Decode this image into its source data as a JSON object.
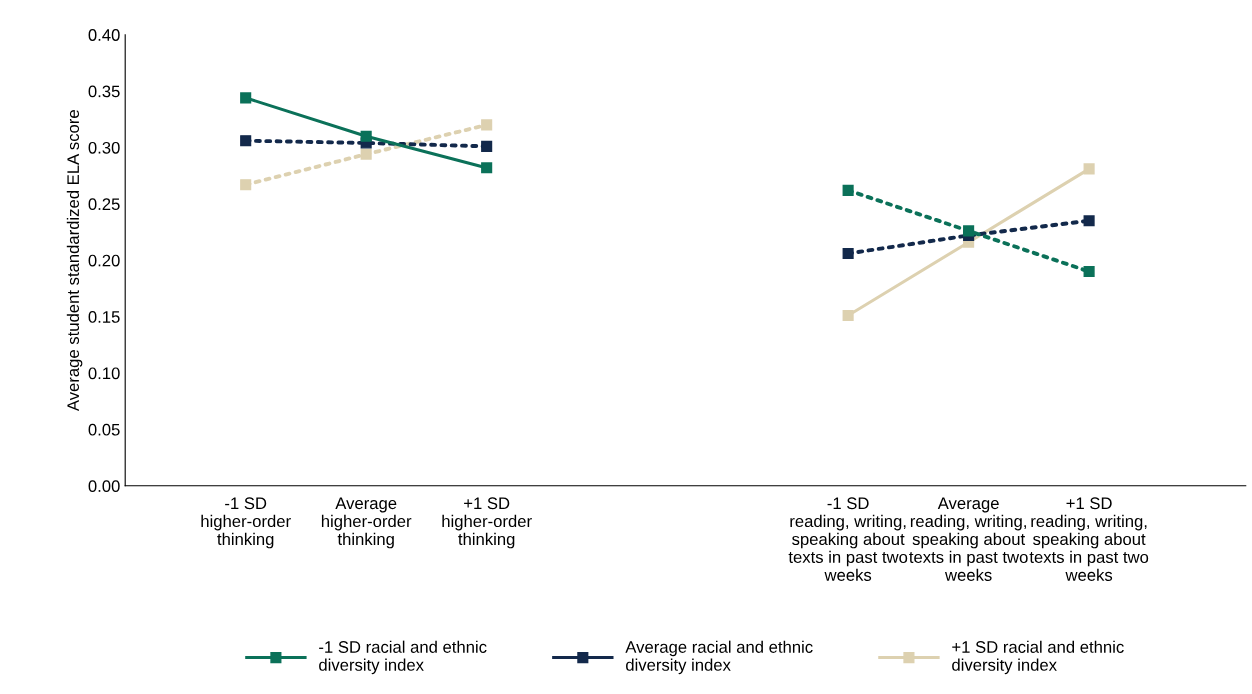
{
  "chart_data": {
    "type": "line",
    "ylabel": "Average student standardized ELA score",
    "categories": [
      "-1 SD\nhigher-order\nthinking",
      "Average\nhigher-order\nthinking",
      "+1 SD\nhigher-order\nthinking",
      null,
      null,
      "-1 SD\nreading, writing,\nspeaking about\ntexts in past two\nweeks",
      "Average\nreading, writing,\nspeaking about\ntexts in past two\nweeks",
      "+1 SD\nreading, writing,\nspeaking about\ntexts in past two\nweeks"
    ],
    "ylim": [
      0,
      0.4
    ],
    "yticks": [
      {
        "value": 0,
        "label": "0.00"
      },
      {
        "value": 0.05,
        "label": "0.05"
      },
      {
        "value": 0.1,
        "label": "0.10"
      },
      {
        "value": 0.15,
        "label": "0.15"
      },
      {
        "value": 0.2,
        "label": "0.20"
      },
      {
        "value": 0.25,
        "label": "0.25"
      },
      {
        "value": 0.3,
        "label": "0.30"
      },
      {
        "value": 0.35,
        "label": "0.35"
      },
      {
        "value": 0.4,
        "label": "0.40"
      }
    ],
    "marker": "square",
    "grid": false,
    "legend": "bottom",
    "series": [
      {
        "name": "-1 SD racial and ethnic\ndiversity index",
        "color": "#0b7159",
        "line_style": "solid",
        "values": [
          0.344,
          0.31,
          0.282,
          null,
          null,
          null,
          null,
          null
        ]
      },
      {
        "name": "Average racial and ethnic\ndiversity index",
        "color": "#13294b",
        "line_style": "dotted",
        "values": [
          0.306,
          0.304,
          0.301,
          null,
          null,
          null,
          null,
          null
        ]
      },
      {
        "name": "+1 SD racial and ethnic\ndiversity index",
        "color": "#ddd1b0",
        "line_style": "dotted",
        "values": [
          0.267,
          0.294,
          0.32,
          null,
          null,
          null,
          null,
          null
        ]
      },
      {
        "color": "#0b7159",
        "line_style": "dotted",
        "values": [
          null,
          null,
          null,
          null,
          null,
          0.262,
          0.226,
          0.19
        ]
      },
      {
        "color": "#13294b",
        "line_style": "dotted",
        "values": [
          null,
          null,
          null,
          null,
          null,
          0.206,
          0.222,
          0.235
        ]
      },
      {
        "color": "#ddd1b0",
        "line_style": "solid",
        "values": [
          null,
          null,
          null,
          null,
          null,
          0.151,
          0.216,
          0.281
        ]
      }
    ]
  }
}
